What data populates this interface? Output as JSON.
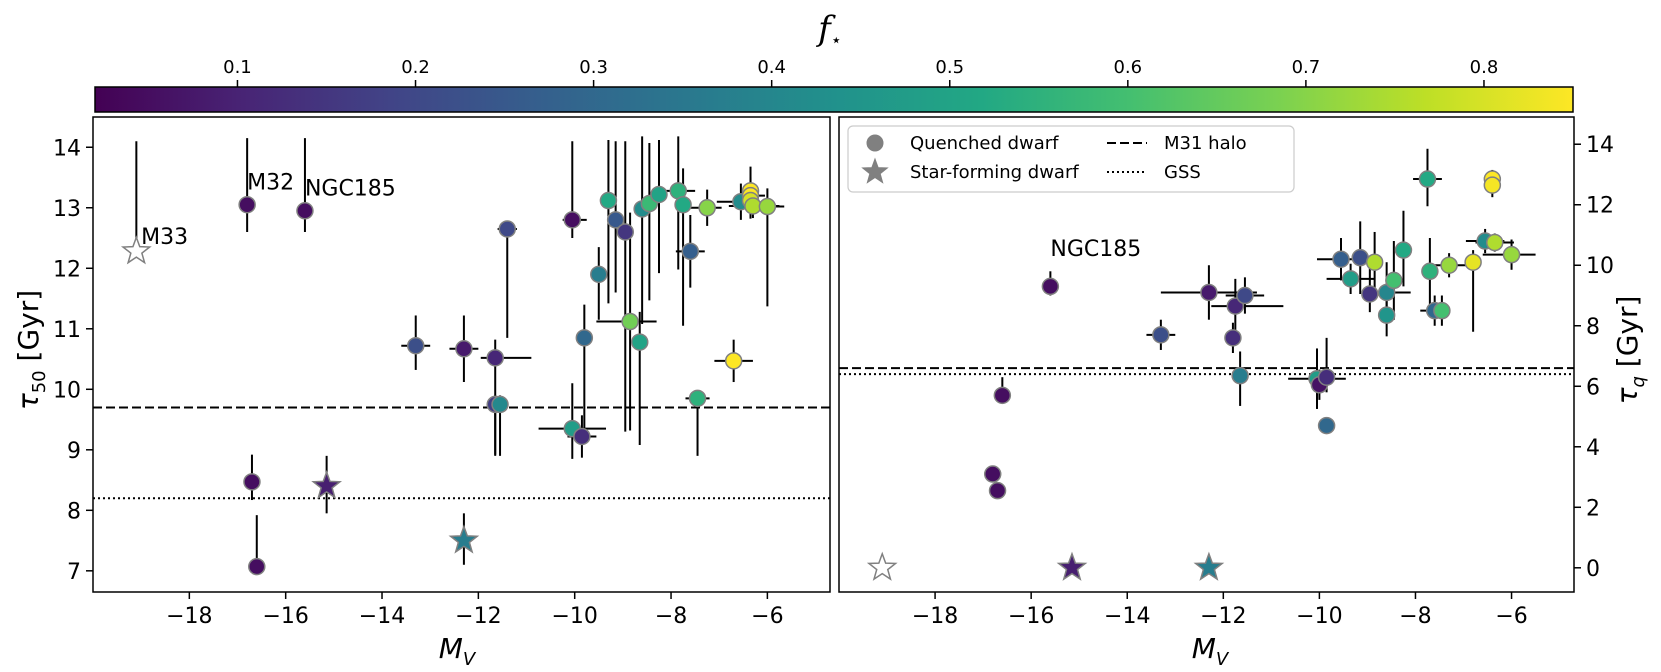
{
  "colorbar": {
    "label": "f",
    "label_sub": "⋆",
    "range": [
      0.02,
      0.85
    ],
    "ticks": [
      0.1,
      0.2,
      0.3,
      0.4,
      0.5,
      0.6,
      0.7,
      0.8
    ],
    "tick_labels": [
      "0.1",
      "0.2",
      "0.3",
      "0.4",
      "0.5",
      "0.6",
      "0.7",
      "0.8"
    ],
    "colormap": "viridis"
  },
  "chart_data": [
    {
      "type": "scatter",
      "panel": "left",
      "xlabel": "M",
      "xlabel_sub": "V",
      "ylabel": "τ",
      "ylabel_sub": "50",
      "ylabel_unit": " [Gyr]",
      "xlim": [
        -20.0,
        -4.7
      ],
      "ylim": [
        6.65,
        14.5
      ],
      "xticks": [
        -18,
        -16,
        -14,
        -12,
        -10,
        -8,
        -6
      ],
      "xtick_labels": [
        "−18",
        "−16",
        "−14",
        "−12",
        "−10",
        "−8",
        "−6"
      ],
      "yticks": [
        7,
        8,
        9,
        10,
        11,
        12,
        13,
        14
      ],
      "ytick_labels": [
        "7",
        "8",
        "9",
        "10",
        "11",
        "12",
        "13",
        "14"
      ],
      "hlines": [
        {
          "name": "M31 halo",
          "y": 9.7,
          "style": "dashed"
        },
        {
          "name": "GSS",
          "y": 8.2,
          "style": "dotted"
        }
      ],
      "annotations": [
        {
          "text": "M33",
          "x": -19.0,
          "y": 12.4
        },
        {
          "text": "M32",
          "x": -16.8,
          "y": 13.3
        },
        {
          "text": "NGC185",
          "x": -15.6,
          "y": 13.2
        }
      ],
      "points": [
        {
          "x": -19.1,
          "y": 12.28,
          "f": null,
          "marker": "star",
          "yerr": [
            0.0,
            1.82
          ]
        },
        {
          "x": -16.8,
          "y": 13.05,
          "f": 0.05,
          "marker": "circle",
          "yerr": [
            0.45,
            1.1
          ]
        },
        {
          "x": -15.6,
          "y": 12.95,
          "f": 0.05,
          "marker": "circle",
          "yerr": [
            0.35,
            1.2
          ]
        },
        {
          "x": -16.7,
          "y": 8.47,
          "f": 0.05,
          "marker": "circle",
          "yerr": [
            0.3,
            0.45
          ]
        },
        {
          "x": -16.6,
          "y": 7.07,
          "f": 0.05,
          "marker": "circle",
          "yerr": [
            0.0,
            0.85
          ]
        },
        {
          "x": -15.15,
          "y": 8.4,
          "f": 0.09,
          "marker": "star",
          "yerr": [
            0.45,
            0.5
          ]
        },
        {
          "x": -13.3,
          "y": 10.72,
          "f": 0.22,
          "marker": "circle",
          "xerr": [
            0.3,
            0.3
          ],
          "yerr": [
            0.4,
            0.5
          ]
        },
        {
          "x": -12.3,
          "y": 10.67,
          "f": 0.08,
          "marker": "circle",
          "xerr": [
            0.3,
            0.3
          ],
          "yerr": [
            0.55,
            0.55
          ]
        },
        {
          "x": -12.3,
          "y": 7.5,
          "f": 0.37,
          "marker": "star",
          "yerr": [
            0.4,
            0.45
          ]
        },
        {
          "x": -11.65,
          "y": 10.52,
          "f": 0.11,
          "marker": "circle",
          "xerr": [
            0.3,
            0.75
          ],
          "yerr": [
            1.6,
            0.3
          ]
        },
        {
          "x": -11.65,
          "y": 9.75,
          "f": 0.17,
          "marker": "circle",
          "yerr": [
            0.85,
            0.15
          ]
        },
        {
          "x": -11.55,
          "y": 9.75,
          "f": 0.41,
          "marker": "circle",
          "yerr": [
            0.85,
            0.15
          ]
        },
        {
          "x": -11.4,
          "y": 12.65,
          "f": 0.2,
          "marker": "circle",
          "xerr": [
            0.2,
            0.2
          ],
          "yerr": [
            1.8,
            0.0
          ]
        },
        {
          "x": -10.05,
          "y": 12.8,
          "f": 0.05,
          "marker": "circle",
          "xerr": [
            0.2,
            0.3
          ],
          "yerr": [
            0.3,
            1.3
          ]
        },
        {
          "x": -10.05,
          "y": 9.35,
          "f": 0.48,
          "marker": "circle",
          "xerr": [
            0.7,
            0.7
          ],
          "yerr": [
            0.5,
            0.75
          ]
        },
        {
          "x": -9.85,
          "y": 9.22,
          "f": 0.13,
          "marker": "circle",
          "xerr": [
            0.3,
            0.3
          ],
          "yerr": [
            0.35,
            0.35
          ]
        },
        {
          "x": -9.8,
          "y": 10.85,
          "f": 0.3,
          "marker": "circle",
          "yerr": [
            1.6,
            0.55
          ]
        },
        {
          "x": -9.5,
          "y": 11.9,
          "f": 0.37,
          "marker": "circle",
          "yerr": [
            0.75,
            0.45
          ]
        },
        {
          "x": -9.3,
          "y": 13.12,
          "f": 0.52,
          "marker": "circle",
          "yerr": [
            1.7,
            1.0
          ]
        },
        {
          "x": -9.15,
          "y": 12.8,
          "f": 0.25,
          "marker": "circle",
          "yerr": [
            1.2,
            1.3
          ]
        },
        {
          "x": -8.95,
          "y": 12.6,
          "f": 0.15,
          "marker": "circle",
          "yerr": [
            3.3,
            1.5
          ]
        },
        {
          "x": -8.85,
          "y": 11.12,
          "f": 0.67,
          "marker": "circle",
          "xerr": [
            0.7,
            0.55
          ],
          "yerr": [
            1.8,
            1.8
          ]
        },
        {
          "x": -8.65,
          "y": 10.78,
          "f": 0.5,
          "marker": "circle",
          "yerr": [
            1.7,
            0.5
          ]
        },
        {
          "x": -8.6,
          "y": 12.98,
          "f": 0.42,
          "marker": "circle",
          "yerr": [
            1.9,
            1.2
          ]
        },
        {
          "x": -8.45,
          "y": 13.07,
          "f": 0.58,
          "marker": "circle",
          "yerr": [
            1.6,
            1.0
          ]
        },
        {
          "x": -8.25,
          "y": 13.22,
          "f": 0.5,
          "marker": "circle",
          "yerr": [
            1.3,
            0.9
          ]
        },
        {
          "x": -7.85,
          "y": 13.28,
          "f": 0.55,
          "marker": "circle",
          "xerr": [
            0.55,
            0.35
          ],
          "yerr": [
            1.3,
            0.9
          ]
        },
        {
          "x": -7.75,
          "y": 13.05,
          "f": 0.52,
          "marker": "circle",
          "yerr": [
            2.0,
            0.6
          ]
        },
        {
          "x": -7.6,
          "y": 12.28,
          "f": 0.27,
          "marker": "circle",
          "xerr": [
            0.3,
            0.3
          ],
          "yerr": [
            0.6,
            0.6
          ]
        },
        {
          "x": -7.45,
          "y": 9.85,
          "f": 0.55,
          "marker": "circle",
          "xerr": [
            0.25,
            0.25
          ],
          "yerr": [
            0.95,
            0.1
          ]
        },
        {
          "x": -7.25,
          "y": 13.0,
          "f": 0.7,
          "marker": "circle",
          "xerr": [
            0.4,
            0.3
          ],
          "yerr": [
            0.3,
            0.3
          ]
        },
        {
          "x": -6.7,
          "y": 10.47,
          "f": 0.85,
          "marker": "circle",
          "xerr": [
            0.4,
            0.4
          ],
          "yerr": [
            0.35,
            0.35
          ]
        },
        {
          "x": -6.55,
          "y": 13.1,
          "f": 0.42,
          "marker": "circle",
          "xerr": [
            0.5,
            0.4
          ],
          "yerr": [
            0.3,
            0.3
          ]
        },
        {
          "x": -6.35,
          "y": 13.28,
          "f": 0.88,
          "marker": "circle",
          "yerr": [
            0.4,
            0.4
          ]
        },
        {
          "x": -6.35,
          "y": 13.2,
          "f": 0.85,
          "marker": "circle",
          "xerr": [
            0.3,
            0.3
          ],
          "yerr": [
            0.3,
            0.3
          ]
        },
        {
          "x": -6.35,
          "y": 13.12,
          "f": 0.8,
          "marker": "circle",
          "yerr": [
            0.3,
            0.3
          ]
        },
        {
          "x": -6.3,
          "y": 13.03,
          "f": 0.75,
          "marker": "circle",
          "xerr": [
            0.5,
            0.55
          ],
          "yerr": [
            0.2,
            0.2
          ]
        },
        {
          "x": -6.0,
          "y": 13.02,
          "f": 0.72,
          "marker": "circle",
          "xerr": [
            0.35,
            0.35
          ],
          "yerr": [
            1.65,
            0.3
          ]
        }
      ]
    },
    {
      "type": "scatter",
      "panel": "right",
      "xlabel": "M",
      "xlabel_sub": "V",
      "ylabel": "τ",
      "ylabel_sub": "q",
      "ylabel_unit": " [Gyr]",
      "xlim": [
        -20.0,
        -4.7
      ],
      "ylim": [
        -0.8,
        14.9
      ],
      "xticks": [
        -18,
        -16,
        -14,
        -12,
        -10,
        -8,
        -6
      ],
      "xtick_labels": [
        "−18",
        "−16",
        "−14",
        "−12",
        "−10",
        "−8",
        "−6"
      ],
      "yticks": [
        0,
        2,
        4,
        6,
        8,
        10,
        12,
        14
      ],
      "ytick_labels": [
        "0",
        "2",
        "4",
        "6",
        "8",
        "10",
        "12",
        "14"
      ],
      "hlines": [
        {
          "name": "M31 halo",
          "y": 6.6,
          "style": "dashed"
        },
        {
          "name": "GSS",
          "y": 6.4,
          "style": "dotted"
        }
      ],
      "annotations": [
        {
          "text": "NGC185",
          "x": -15.6,
          "y": 10.3
        }
      ],
      "legend": {
        "position": "top-left",
        "entries": [
          {
            "label": "Quenched dwarf",
            "kind": "circle"
          },
          {
            "label": "Star-forming dwarf",
            "kind": "star"
          },
          {
            "label": "M31 halo",
            "kind": "dashed"
          },
          {
            "label": "GSS",
            "kind": "dotted"
          }
        ]
      },
      "points": [
        {
          "x": -19.1,
          "y": 0.0,
          "f": null,
          "marker": "star"
        },
        {
          "x": -15.15,
          "y": 0.0,
          "f": 0.09,
          "marker": "star"
        },
        {
          "x": -12.3,
          "y": 0.0,
          "f": 0.37,
          "marker": "star"
        },
        {
          "x": -15.6,
          "y": 9.3,
          "f": 0.05,
          "marker": "circle",
          "yerr": [
            0.3,
            0.5
          ]
        },
        {
          "x": -16.6,
          "y": 5.7,
          "f": 0.05,
          "marker": "circle",
          "yerr": [
            0.2,
            0.6
          ]
        },
        {
          "x": -16.8,
          "y": 3.1,
          "f": 0.05,
          "marker": "circle"
        },
        {
          "x": -16.7,
          "y": 2.55,
          "f": 0.05,
          "marker": "circle"
        },
        {
          "x": -13.3,
          "y": 7.7,
          "f": 0.22,
          "marker": "circle",
          "xerr": [
            0.3,
            0.3
          ],
          "yerr": [
            0.5,
            0.5
          ]
        },
        {
          "x": -12.3,
          "y": 9.1,
          "f": 0.08,
          "marker": "circle",
          "xerr": [
            1.0,
            1.0
          ],
          "yerr": [
            0.9,
            0.9
          ]
        },
        {
          "x": -11.75,
          "y": 8.65,
          "f": 0.11,
          "marker": "circle",
          "xerr": [
            0.5,
            1.0
          ],
          "yerr": [
            0.9,
            0.9
          ]
        },
        {
          "x": -11.55,
          "y": 9.0,
          "f": 0.2,
          "marker": "circle",
          "xerr": [
            0.4,
            0.4
          ],
          "yerr": [
            0.6,
            0.6
          ]
        },
        {
          "x": -11.8,
          "y": 7.6,
          "f": 0.13,
          "marker": "circle",
          "yerr": [
            0.5,
            0.5
          ]
        },
        {
          "x": -11.65,
          "y": 6.35,
          "f": 0.37,
          "marker": "circle",
          "yerr": [
            1.0,
            0.8
          ]
        },
        {
          "x": -10.05,
          "y": 6.25,
          "f": 0.48,
          "marker": "circle",
          "xerr": [
            0.6,
            0.6
          ],
          "yerr": [
            1.0,
            1.0
          ]
        },
        {
          "x": -10.0,
          "y": 6.05,
          "f": 0.06,
          "marker": "circle",
          "yerr": [
            0.5,
            0.5
          ]
        },
        {
          "x": -9.85,
          "y": 6.3,
          "f": 0.13,
          "marker": "circle",
          "yerr": [
            0.5,
            1.3
          ]
        },
        {
          "x": -9.85,
          "y": 4.7,
          "f": 0.3,
          "marker": "circle",
          "yerr": [
            0.2,
            0.2
          ]
        },
        {
          "x": -9.55,
          "y": 10.2,
          "f": 0.27,
          "marker": "circle",
          "xerr": [
            0.5,
            0.5
          ],
          "yerr": [
            0.7,
            0.7
          ]
        },
        {
          "x": -9.35,
          "y": 9.55,
          "f": 0.48,
          "marker": "circle",
          "xerr": [
            0.5,
            0.5
          ],
          "yerr": [
            0.5,
            0.5
          ]
        },
        {
          "x": -9.15,
          "y": 10.25,
          "f": 0.22,
          "marker": "circle",
          "yerr": [
            1.2,
            1.2
          ]
        },
        {
          "x": -8.95,
          "y": 9.05,
          "f": 0.15,
          "marker": "circle",
          "yerr": [
            0.6,
            0.9
          ]
        },
        {
          "x": -8.85,
          "y": 10.1,
          "f": 0.75,
          "marker": "circle",
          "yerr": [
            1.0,
            1.0
          ]
        },
        {
          "x": -8.6,
          "y": 9.1,
          "f": 0.4,
          "marker": "circle",
          "xerr": [
            0.5,
            0.5
          ],
          "yerr": [
            1.0,
            1.0
          ]
        },
        {
          "x": -8.6,
          "y": 8.35,
          "f": 0.45,
          "marker": "circle",
          "yerr": [
            0.7,
            0.7
          ]
        },
        {
          "x": -8.45,
          "y": 9.5,
          "f": 0.6,
          "marker": "circle",
          "yerr": [
            1.3,
            1.3
          ]
        },
        {
          "x": -8.25,
          "y": 10.5,
          "f": 0.52,
          "marker": "circle",
          "yerr": [
            1.2,
            1.3
          ]
        },
        {
          "x": -7.75,
          "y": 12.85,
          "f": 0.52,
          "marker": "circle",
          "xerr": [
            0.3,
            0.3
          ],
          "yerr": [
            0.9,
            1.0
          ]
        },
        {
          "x": -7.7,
          "y": 9.8,
          "f": 0.55,
          "marker": "circle",
          "yerr": [
            1.1,
            1.1
          ]
        },
        {
          "x": -7.6,
          "y": 8.5,
          "f": 0.3,
          "marker": "circle",
          "xerr": [
            0.3,
            0.3
          ],
          "yerr": [
            0.5,
            0.5
          ]
        },
        {
          "x": -7.45,
          "y": 8.5,
          "f": 0.6,
          "marker": "circle",
          "yerr": [
            0.5,
            0.5
          ]
        },
        {
          "x": -7.3,
          "y": 10.0,
          "f": 0.72,
          "marker": "circle",
          "xerr": [
            0.4,
            0.4
          ],
          "yerr": [
            0.4,
            0.4
          ]
        },
        {
          "x": -6.8,
          "y": 10.1,
          "f": 0.82,
          "marker": "circle",
          "yerr": [
            2.3,
            0.4
          ]
        },
        {
          "x": -6.55,
          "y": 10.8,
          "f": 0.42,
          "marker": "circle",
          "xerr": [
            0.4,
            0.4
          ],
          "yerr": [
            0.4,
            0.4
          ]
        },
        {
          "x": -6.4,
          "y": 12.85,
          "f": 0.88,
          "marker": "circle",
          "yerr": [
            0.3,
            0.3
          ]
        },
        {
          "x": -6.4,
          "y": 12.65,
          "f": 0.84,
          "marker": "circle",
          "yerr": [
            0.4,
            0.3
          ]
        },
        {
          "x": -6.35,
          "y": 10.75,
          "f": 0.75,
          "marker": "circle",
          "xerr": [
            0.4,
            0.4
          ],
          "yerr": [
            0.3,
            0.3
          ]
        },
        {
          "x": -6.0,
          "y": 10.35,
          "f": 0.72,
          "marker": "circle",
          "xerr": [
            0.6,
            0.5
          ],
          "yerr": [
            0.5,
            0.5
          ]
        }
      ]
    }
  ]
}
